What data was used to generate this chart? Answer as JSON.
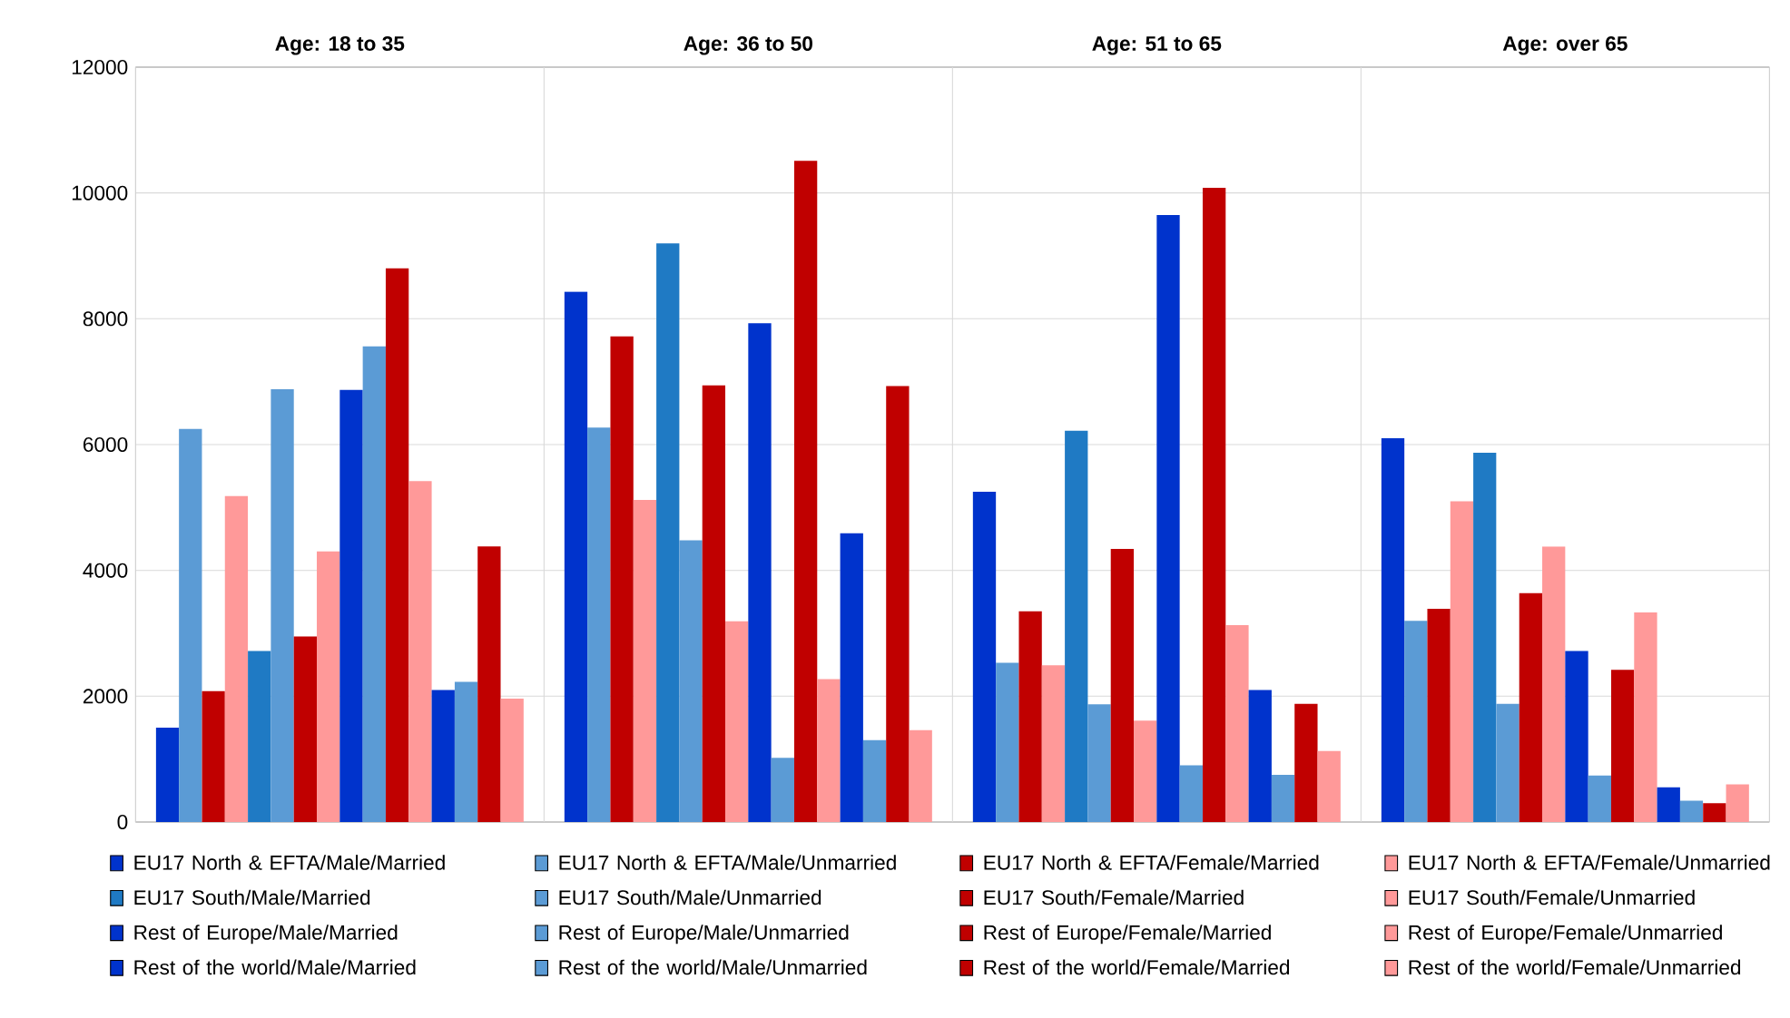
{
  "chart_data": {
    "type": "bar",
    "categories": [
      "Age: 18 to 35",
      "Age: 36 to 50",
      "Age: 51 to 65",
      "Age: over 65"
    ],
    "ylim": [
      0,
      12000
    ],
    "yticks": [
      0,
      2000,
      4000,
      6000,
      8000,
      10000,
      12000
    ],
    "grid": "y",
    "legend": "bottom",
    "series": [
      {
        "name": "EU17 North & EFTA/Male/Married",
        "color": "#0033cc",
        "values": [
          1500,
          8430,
          5250,
          6100
        ]
      },
      {
        "name": "EU17 North & EFTA/Male/Unmarried",
        "color": "#5b9bd5",
        "values": [
          6250,
          6270,
          2530,
          3200
        ]
      },
      {
        "name": "EU17 North & EFTA/Female/Married",
        "color": "#c00000",
        "values": [
          2080,
          7720,
          3350,
          3390
        ]
      },
      {
        "name": "EU17 North & EFTA/Female/Unmarried",
        "color": "#ff9999",
        "values": [
          5180,
          5120,
          2490,
          5100
        ]
      },
      {
        "name": "EU17 South/Male/Married",
        "color": "#1f7ac4",
        "values": [
          2720,
          9200,
          6220,
          5870
        ]
      },
      {
        "name": "EU17 South/Male/Unmarried",
        "color": "#5b9bd5",
        "values": [
          6880,
          4480,
          1870,
          1880
        ]
      },
      {
        "name": "EU17 South/Female/Married",
        "color": "#c00000",
        "values": [
          2950,
          6940,
          4340,
          3640
        ]
      },
      {
        "name": "EU17 South/Female/Unmarried",
        "color": "#ff9999",
        "values": [
          4300,
          3190,
          1610,
          4380
        ]
      },
      {
        "name": "Rest of Europe/Male/Married",
        "color": "#0033cc",
        "values": [
          6870,
          7930,
          9650,
          2720
        ]
      },
      {
        "name": "Rest of Europe/Male/Unmarried",
        "color": "#5b9bd5",
        "values": [
          7560,
          1020,
          900,
          740
        ]
      },
      {
        "name": "Rest of Europe/Female/Married",
        "color": "#c00000",
        "values": [
          8800,
          10510,
          10080,
          2420
        ]
      },
      {
        "name": "Rest of Europe/Female/Unmarried",
        "color": "#ff9999",
        "values": [
          5420,
          2270,
          3130,
          3330
        ]
      },
      {
        "name": "Rest of the world/Male/Married",
        "color": "#0033cc",
        "values": [
          2100,
          4590,
          2100,
          550
        ]
      },
      {
        "name": "Rest of the world/Male/Unmarried",
        "color": "#5b9bd5",
        "values": [
          2230,
          1300,
          750,
          340
        ]
      },
      {
        "name": "Rest of the world/Female/Married",
        "color": "#c00000",
        "values": [
          4380,
          6930,
          1880,
          300
        ]
      },
      {
        "name": "Rest of the world/Female/Unmarried",
        "color": "#ff9999",
        "values": [
          1960,
          1460,
          1130,
          600
        ]
      }
    ]
  }
}
